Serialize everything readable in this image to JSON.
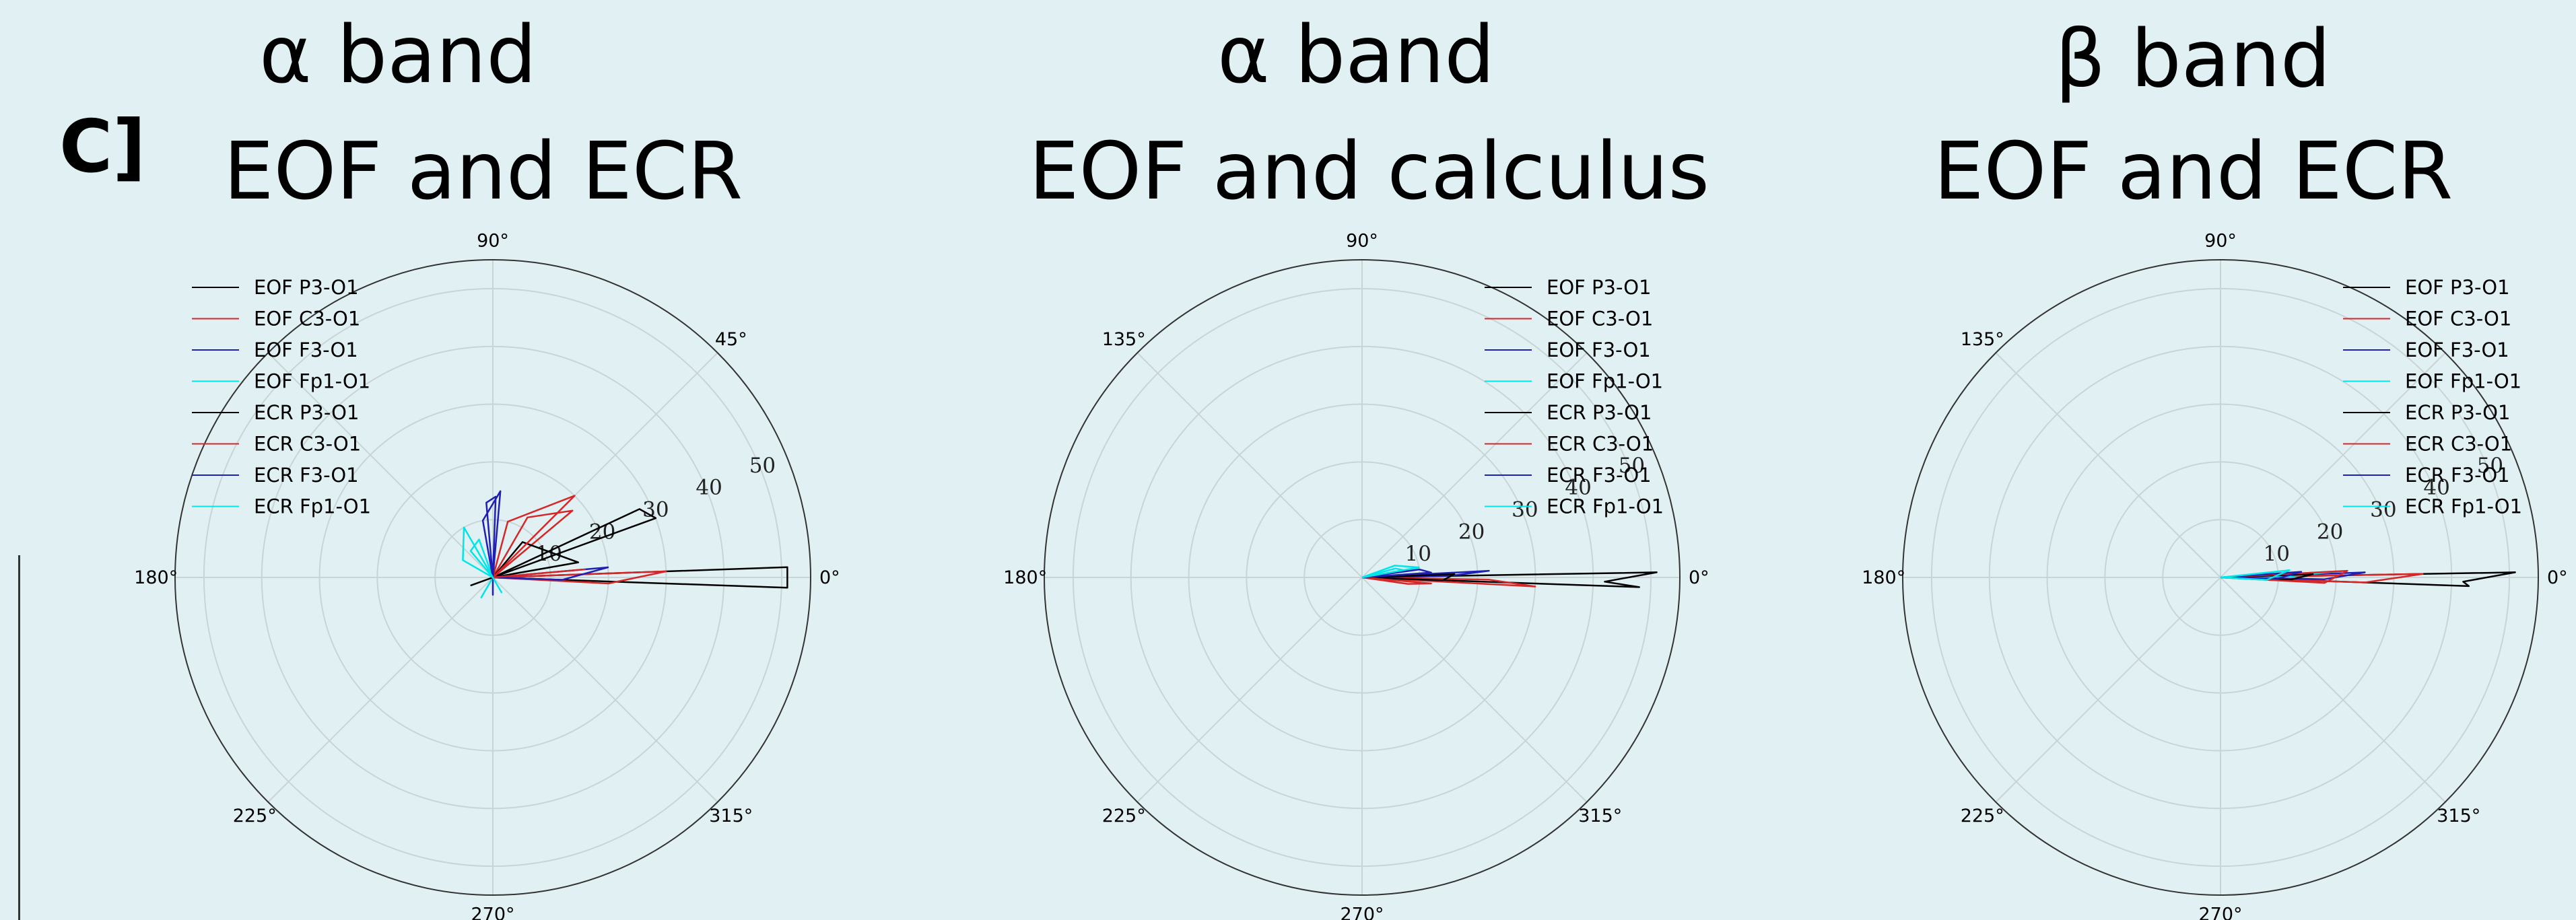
{
  "panel_label": "C]",
  "charts": [
    {
      "title_line1": "α band",
      "title_line2": "EOF and ECR"
    },
    {
      "title_line1": "α band",
      "title_line2": "EOF and calculus"
    },
    {
      "title_line1": "β band",
      "title_line2": "EOF and ECR"
    }
  ],
  "chart_data": [
    {
      "type": "polar-line",
      "title": "α band EOF and ECR",
      "angle_ticks_deg": [
        0,
        45,
        90,
        135,
        180,
        225,
        270,
        315
      ],
      "angle_labels": [
        "0°",
        "45°",
        "90°",
        "",
        "180°",
        "225°",
        "270°",
        "315°"
      ],
      "radial_ticks": [
        10,
        20,
        30,
        40,
        50
      ],
      "radial_labels": [
        "10",
        "20",
        "30",
        "40",
        "50"
      ],
      "rlim": [
        0,
        55
      ],
      "radial_label_angle_deg": 22.5,
      "legend": "top-left",
      "series": [
        {
          "name": "EOF P3-O1",
          "color": "#000000",
          "points": [
            [
              0,
              0
            ],
            [
              2,
              51
            ],
            [
              -2,
              51
            ],
            [
              0,
              0
            ],
            [
              20,
              30
            ],
            [
              25,
              28
            ],
            [
              0,
              0
            ]
          ]
        },
        {
          "name": "EOF C3-O1",
          "color": "#d62728",
          "points": [
            [
              0,
              0
            ],
            [
              2,
              30
            ],
            [
              -3,
              20
            ],
            [
              0,
              0
            ],
            [
              40,
              18
            ],
            [
              60,
              12
            ],
            [
              0,
              0
            ]
          ]
        },
        {
          "name": "EOF F3-O1",
          "color": "#1f1fb4",
          "points": [
            [
              0,
              0
            ],
            [
              5,
              20
            ],
            [
              -2,
              12
            ],
            [
              0,
              0
            ],
            [
              88,
              14
            ],
            [
              95,
              13
            ],
            [
              0,
              0
            ]
          ]
        },
        {
          "name": "EOF Fp1-O1",
          "color": "#00e5e5",
          "points": [
            [
              0,
              0
            ],
            [
              110,
              7
            ],
            [
              130,
              6
            ],
            [
              0,
              0
            ],
            [
              240,
              4
            ],
            [
              0,
              0
            ]
          ]
        },
        {
          "name": "ECR P3-O1",
          "color": "#000000",
          "points": [
            [
              0,
              0
            ],
            [
              10,
              15
            ],
            [
              50,
              8
            ],
            [
              0,
              0
            ],
            [
              200,
              4
            ],
            [
              0,
              0
            ]
          ]
        },
        {
          "name": "ECR C3-O1",
          "color": "#d62728",
          "points": [
            [
              0,
              0
            ],
            [
              45,
              20
            ],
            [
              75,
              10
            ],
            [
              0,
              0
            ],
            [
              5,
              16
            ],
            [
              0,
              0
            ]
          ]
        },
        {
          "name": "ECR F3-O1",
          "color": "#1f1fb4",
          "points": [
            [
              0,
              0
            ],
            [
              85,
              15
            ],
            [
              100,
              10
            ],
            [
              0,
              0
            ],
            [
              270,
              3
            ],
            [
              0,
              0
            ]
          ]
        },
        {
          "name": "ECR Fp1-O1",
          "color": "#00e5e5",
          "points": [
            [
              0,
              0
            ],
            [
              120,
              10
            ],
            [
              150,
              6
            ],
            [
              0,
              0
            ],
            [
              300,
              3
            ],
            [
              0,
              0
            ]
          ]
        }
      ]
    },
    {
      "type": "polar-line",
      "title": "α band EOF and calculus",
      "angle_ticks_deg": [
        0,
        45,
        90,
        135,
        180,
        225,
        270,
        315
      ],
      "angle_labels": [
        "0°",
        "",
        "90°",
        "135°",
        "180°",
        "225°",
        "270°",
        "315°"
      ],
      "radial_ticks": [
        10,
        20,
        30,
        40,
        50
      ],
      "radial_labels": [
        "10",
        "20",
        "30",
        "40",
        "50"
      ],
      "rlim": [
        0,
        55
      ],
      "radial_label_angle_deg": 22.5,
      "legend": "top-right",
      "series": [
        {
          "name": "EOF P3-O1",
          "color": "#000000",
          "points": [
            [
              0,
              0
            ],
            [
              1,
              51
            ],
            [
              -1,
              42
            ],
            [
              -2,
              48
            ],
            [
              0,
              0
            ]
          ]
        },
        {
          "name": "EOF C3-O1",
          "color": "#d62728",
          "points": [
            [
              0,
              0
            ],
            [
              -3,
              30
            ],
            [
              -1,
              22
            ],
            [
              0,
              0
            ]
          ]
        },
        {
          "name": "EOF F3-O1",
          "color": "#1f1fb4",
          "points": [
            [
              0,
              0
            ],
            [
              3,
              22
            ],
            [
              1,
              15
            ],
            [
              0,
              0
            ]
          ]
        },
        {
          "name": "EOF Fp1-O1",
          "color": "#00e5e5",
          "points": [
            [
              0,
              0
            ],
            [
              8,
              8
            ],
            [
              15,
              6
            ],
            [
              0,
              0
            ]
          ]
        },
        {
          "name": "ECR P3-O1",
          "color": "#000000",
          "points": [
            [
              0,
              0
            ],
            [
              2,
              16
            ],
            [
              -2,
              14
            ],
            [
              0,
              0
            ]
          ]
        },
        {
          "name": "ECR C3-O1",
          "color": "#d62728",
          "points": [
            [
              0,
              0
            ],
            [
              -5,
              12
            ],
            [
              -8,
              8
            ],
            [
              0,
              0
            ]
          ]
        },
        {
          "name": "ECR F3-O1",
          "color": "#1f1fb4",
          "points": [
            [
              0,
              0
            ],
            [
              4,
              12
            ],
            [
              8,
              10
            ],
            [
              0,
              0
            ]
          ]
        },
        {
          "name": "ECR Fp1-O1",
          "color": "#00e5e5",
          "points": [
            [
              0,
              0
            ],
            [
              10,
              10
            ],
            [
              20,
              6
            ],
            [
              0,
              0
            ]
          ]
        }
      ]
    },
    {
      "type": "polar-line",
      "title": "β band EOF and ECR",
      "angle_ticks_deg": [
        0,
        45,
        90,
        135,
        180,
        225,
        270,
        315
      ],
      "angle_labels": [
        "0°",
        "",
        "90°",
        "135°",
        "180°",
        "225°",
        "270°",
        "315°"
      ],
      "radial_ticks": [
        10,
        20,
        30,
        40,
        50
      ],
      "radial_labels": [
        "10",
        "20",
        "30",
        "40",
        "50"
      ],
      "rlim": [
        0,
        55
      ],
      "radial_label_angle_deg": 22.5,
      "legend": "top-right",
      "series": [
        {
          "name": "EOF P3-O1",
          "color": "#000000",
          "points": [
            [
              0,
              0
            ],
            [
              1,
              51
            ],
            [
              -1,
              42
            ],
            [
              -2,
              43
            ],
            [
              0,
              0
            ]
          ]
        },
        {
          "name": "EOF C3-O1",
          "color": "#d62728",
          "points": [
            [
              0,
              0
            ],
            [
              1,
              35
            ],
            [
              -2,
              25
            ],
            [
              0,
              0
            ]
          ]
        },
        {
          "name": "EOF F3-O1",
          "color": "#1f1fb4",
          "points": [
            [
              0,
              0
            ],
            [
              2,
              25
            ],
            [
              -1,
              18
            ],
            [
              0,
              0
            ]
          ]
        },
        {
          "name": "EOF Fp1-O1",
          "color": "#00e5e5",
          "points": [
            [
              0,
              0
            ],
            [
              3,
              20
            ],
            [
              1,
              12
            ],
            [
              0,
              0
            ]
          ]
        },
        {
          "name": "ECR P3-O1",
          "color": "#000000",
          "points": [
            [
              0,
              0
            ],
            [
              2,
              16
            ],
            [
              -2,
              12
            ],
            [
              0,
              0
            ]
          ]
        },
        {
          "name": "ECR C3-O1",
          "color": "#d62728",
          "points": [
            [
              0,
              0
            ],
            [
              3,
              22
            ],
            [
              -3,
              18
            ],
            [
              0,
              0
            ]
          ]
        },
        {
          "name": "ECR F3-O1",
          "color": "#1f1fb4",
          "points": [
            [
              0,
              0
            ],
            [
              4,
              14
            ],
            [
              -1,
              10
            ],
            [
              0,
              0
            ]
          ]
        },
        {
          "name": "ECR Fp1-O1",
          "color": "#00e5e5",
          "points": [
            [
              0,
              0
            ],
            [
              6,
              12
            ],
            [
              -3,
              8
            ],
            [
              0,
              0
            ]
          ]
        }
      ]
    }
  ]
}
